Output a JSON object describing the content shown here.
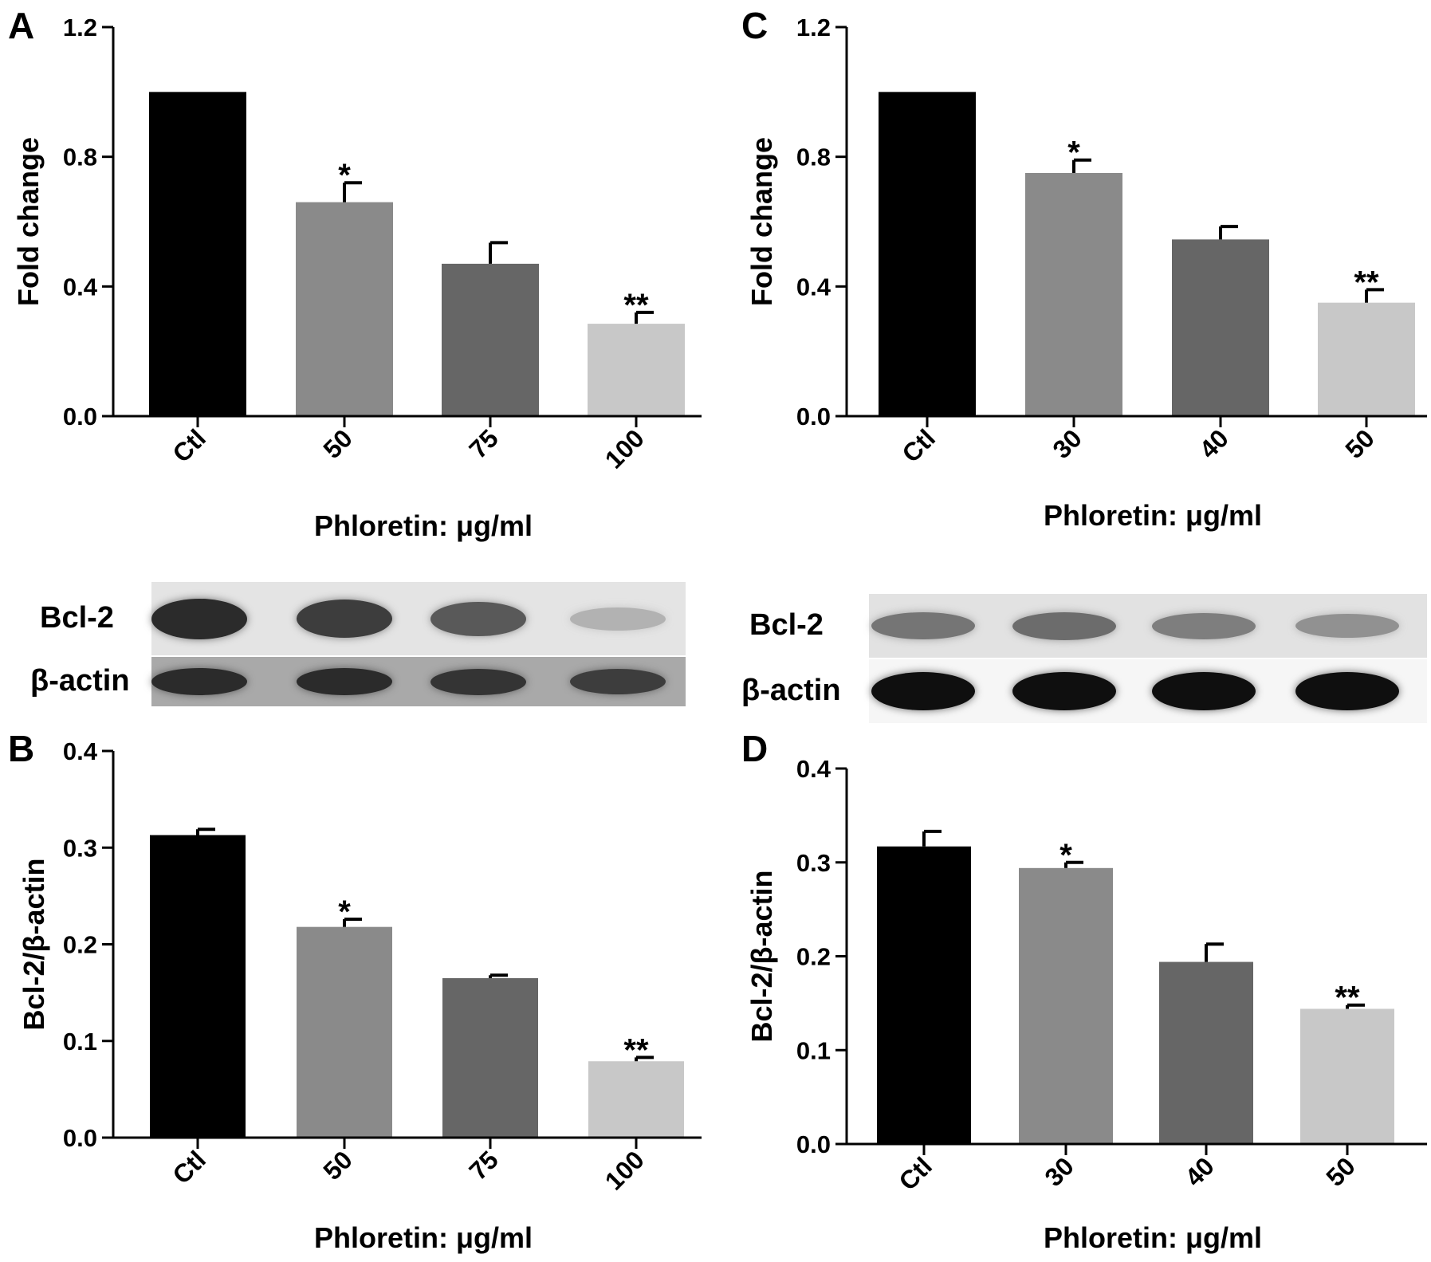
{
  "chart_data": [
    {
      "panel": "A",
      "type": "bar",
      "categories": [
        "Ctl",
        "50",
        "75",
        "100"
      ],
      "values": [
        1.0,
        0.66,
        0.47,
        0.285
      ],
      "errors": [
        0,
        0.06,
        0.065,
        0.035
      ],
      "annotations": [
        "",
        "*",
        "",
        "**"
      ],
      "ylabel": "Fold change",
      "xlabel": "Phloretin: μg/ml",
      "yticks": [
        "0.0",
        "0.4",
        "0.8",
        "1.2"
      ],
      "ylim": [
        0,
        1.2
      ],
      "bar_colors": [
        "#000000",
        "#8a8a8a",
        "#666666",
        "#c8c8c8"
      ]
    },
    {
      "panel": "B",
      "type": "bar",
      "categories": [
        "Ctl",
        "50",
        "75",
        "100"
      ],
      "values": [
        0.313,
        0.218,
        0.165,
        0.079
      ],
      "errors": [
        0.006,
        0.008,
        0.003,
        0.004
      ],
      "annotations": [
        "",
        "*",
        "",
        "**"
      ],
      "ylabel": "Bcl-2/β-actin",
      "xlabel": "Phloretin: μg/ml",
      "yticks": [
        "0.0",
        "0.1",
        "0.2",
        "0.3",
        "0.4"
      ],
      "ylim": [
        0,
        0.4
      ],
      "bar_colors": [
        "#000000",
        "#8a8a8a",
        "#666666",
        "#c8c8c8"
      ]
    },
    {
      "panel": "C",
      "type": "bar",
      "categories": [
        "Ctl",
        "30",
        "40",
        "50"
      ],
      "values": [
        1.0,
        0.75,
        0.545,
        0.35
      ],
      "errors": [
        0,
        0.04,
        0.04,
        0.04
      ],
      "annotations": [
        "",
        "*",
        "",
        "**"
      ],
      "ylabel": "Fold change",
      "xlabel": "Phloretin: μg/ml",
      "yticks": [
        "0.0",
        "0.4",
        "0.8",
        "1.2"
      ],
      "ylim": [
        0,
        1.2
      ],
      "bar_colors": [
        "#000000",
        "#8a8a8a",
        "#666666",
        "#c8c8c8"
      ]
    },
    {
      "panel": "D",
      "type": "bar",
      "categories": [
        "Ctl",
        "30",
        "40",
        "50"
      ],
      "values": [
        0.317,
        0.294,
        0.194,
        0.144
      ],
      "errors": [
        0.016,
        0.006,
        0.019,
        0.004
      ],
      "annotations": [
        "",
        "*",
        "",
        "**"
      ],
      "ylabel": "Bcl-2/β-actin",
      "xlabel": "Phloretin: μg/ml",
      "yticks": [
        "0.0",
        "0.1",
        "0.2",
        "0.3",
        "0.4"
      ],
      "ylim": [
        0,
        0.4
      ],
      "bar_colors": [
        "#000000",
        "#8a8a8a",
        "#666666",
        "#c8c8c8"
      ]
    }
  ],
  "blots": [
    {
      "panel": "AB",
      "rows": [
        {
          "label": "Bcl-2",
          "intensity": [
            0.85,
            0.75,
            0.6,
            0.12
          ]
        },
        {
          "label": "β-actin",
          "intensity": [
            0.85,
            0.85,
            0.8,
            0.75
          ]
        }
      ]
    },
    {
      "panel": "CD",
      "rows": [
        {
          "label": "Bcl-2",
          "intensity": [
            0.45,
            0.5,
            0.4,
            0.3
          ]
        },
        {
          "label": "β-actin",
          "intensity": [
            1.0,
            1.0,
            1.0,
            1.0
          ]
        }
      ]
    }
  ]
}
